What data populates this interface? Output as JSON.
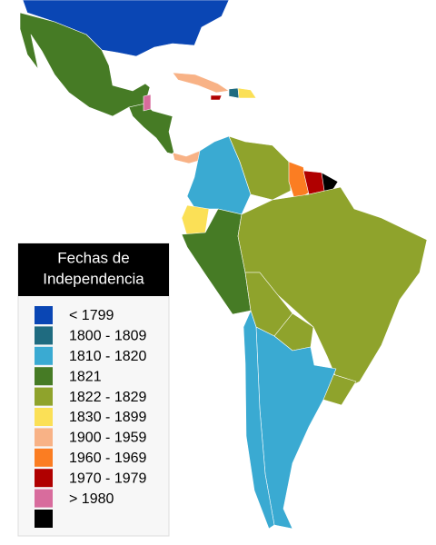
{
  "legend": {
    "title": [
      "Fechas de",
      "Independencia"
    ],
    "items": [
      {
        "label": "< 1799",
        "color": "#0a46b4"
      },
      {
        "label": "1800 - 1809",
        "color": "#1f6b80"
      },
      {
        "label": "1810 - 1820",
        "color": "#3aaad2"
      },
      {
        "label": "1821",
        "color": "#467b25"
      },
      {
        "label": "1822 - 1829",
        "color": "#8fa32c"
      },
      {
        "label": "1830 - 1899",
        "color": "#fbe056"
      },
      {
        "label": "1900 - 1959",
        "color": "#f8b286"
      },
      {
        "label": "1960 - 1969",
        "color": "#fb7d22"
      },
      {
        "label": "1970 - 1979",
        "color": "#b00000"
      },
      {
        "label": "> 1980",
        "color": "#d86c9d"
      },
      {
        "label": null,
        "color": "#000000"
      }
    ]
  }
}
